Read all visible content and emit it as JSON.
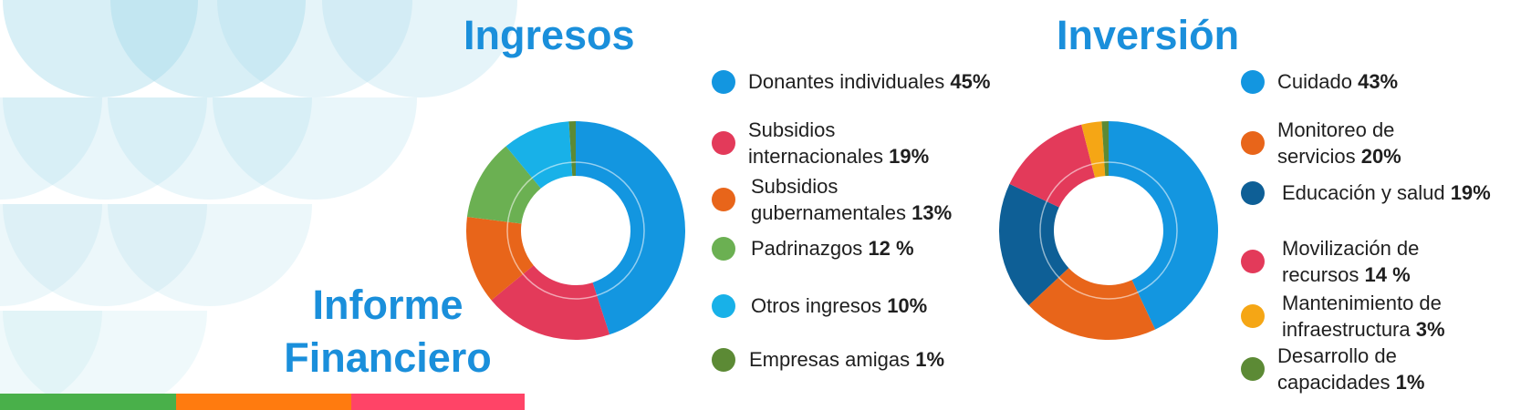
{
  "report": {
    "title_line1": "Informe",
    "title_line2": "Financiero"
  },
  "colors": {
    "title_blue": "#1a8fdb",
    "bar_green": "#49b04a",
    "bar_orange": "#ff7b0f",
    "bar_red": "#ff4467",
    "bubble": "#a9dcea"
  },
  "chart_data": [
    {
      "type": "pie",
      "variant": "donut",
      "title": "Ingresos",
      "categories": [
        "Donantes individuales",
        "Subsidios internacionales",
        "Subsidios gubernamentales",
        "Padrinazgos",
        "Otros ingresos",
        "Empresas amigas"
      ],
      "values": [
        45,
        19,
        13,
        12,
        10,
        1
      ],
      "value_labels": [
        "45%",
        "19%",
        "13%",
        "12 %",
        "10%",
        "1%"
      ],
      "label_lines": [
        [
          "Donantes individuales"
        ],
        [
          "Subsidios",
          "internacionales"
        ],
        [
          "Subsidios",
          "gubernamentales"
        ],
        [
          "Padrinazgos"
        ],
        [
          "Otros ingresos"
        ],
        [
          "Empresas amigas"
        ]
      ],
      "colors": [
        "#1396e0",
        "#e33a5a",
        "#e8651a",
        "#6bb052",
        "#18b1e8",
        "#5c8a35"
      ],
      "legend": "right"
    },
    {
      "type": "pie",
      "variant": "donut",
      "title": "Inversión",
      "categories": [
        "Cuidado",
        "Monitoreo de servicios",
        "Educación y salud",
        "Movilización de recursos",
        "Mantenimiento de infraestructura",
        "Desarrollo de capacidades"
      ],
      "values": [
        43,
        20,
        19,
        14,
        3,
        1
      ],
      "value_labels": [
        "43%",
        "20%",
        "19%",
        "14 %",
        "3%",
        "1%"
      ],
      "label_lines": [
        [
          "Cuidado"
        ],
        [
          "Monitoreo de",
          "servicios"
        ],
        [
          "Educación y salud"
        ],
        [
          "Movilización de",
          "recursos"
        ],
        [
          "Mantenimiento de",
          "infraestructura"
        ],
        [
          "Desarrollo de",
          "capacidades"
        ]
      ],
      "colors": [
        "#1396e0",
        "#e8651a",
        "#0e5f96",
        "#e33a5a",
        "#f5a615",
        "#5c8a35"
      ],
      "legend": "right"
    }
  ]
}
